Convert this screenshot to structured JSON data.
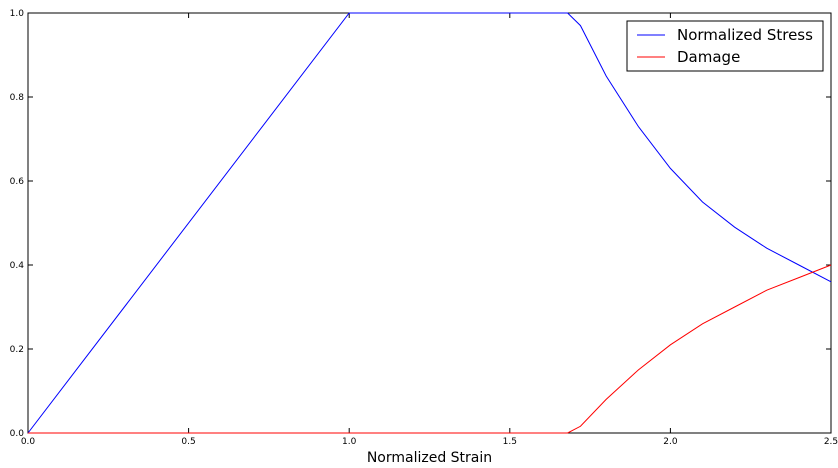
{
  "chart_data": {
    "type": "line",
    "title": "",
    "xlabel": "Normalized Strain",
    "ylabel": "",
    "xlim": [
      0.0,
      2.5
    ],
    "ylim": [
      0.0,
      1.0
    ],
    "xticks": [
      0.0,
      0.5,
      1.0,
      1.5,
      2.0,
      2.5
    ],
    "yticks": [
      0.0,
      0.2,
      0.4,
      0.6,
      0.8,
      1.0
    ],
    "xtick_labels": [
      "0.0",
      "0.5",
      "1.0",
      "1.5",
      "2.0",
      "2.5"
    ],
    "ytick_labels": [
      "0.0",
      "0.2",
      "0.4",
      "0.6",
      "0.8",
      "1.0"
    ],
    "grid": false,
    "legend": "top-right",
    "series": [
      {
        "name": "Normalized Stress",
        "color": "#0000ff",
        "x": [
          0.0,
          1.0,
          1.68,
          1.72,
          1.8,
          1.9,
          2.0,
          2.1,
          2.2,
          2.3,
          2.4,
          2.5
        ],
        "y": [
          0.0,
          1.0,
          1.0,
          0.97,
          0.85,
          0.73,
          0.63,
          0.55,
          0.49,
          0.44,
          0.4,
          0.36
        ]
      },
      {
        "name": "Damage",
        "color": "#ff0000",
        "x": [
          0.0,
          1.68,
          1.72,
          1.8,
          1.9,
          2.0,
          2.1,
          2.2,
          2.3,
          2.4,
          2.5
        ],
        "y": [
          0.0,
          0.0,
          0.016,
          0.08,
          0.15,
          0.21,
          0.26,
          0.3,
          0.34,
          0.37,
          0.4
        ]
      }
    ]
  }
}
